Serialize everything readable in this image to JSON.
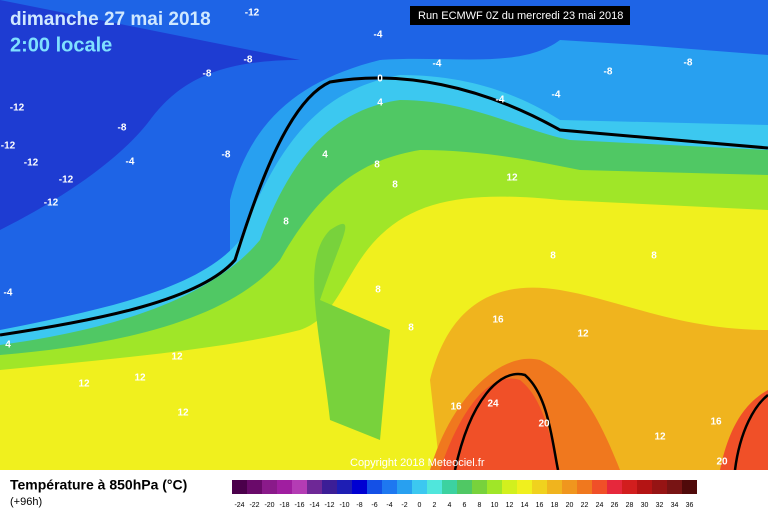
{
  "header": {
    "title": "dimanche 27 mai 2018",
    "subtitle": "2:00 locale",
    "run": "Run ECMWF 0Z du mercredi 23 mai 2018"
  },
  "copyright": "Copyright 2018 Meteociel.fr",
  "footer": {
    "label": "Température à 850hPa (°C)",
    "lead_time": "(+96h)"
  },
  "legend": {
    "levels": [
      -24,
      -22,
      -20,
      -18,
      -16,
      -14,
      -12,
      -10,
      -8,
      -6,
      -4,
      -2,
      0,
      2,
      4,
      6,
      8,
      10,
      12,
      14,
      16,
      18,
      20,
      22,
      24,
      26,
      28,
      30,
      32,
      34,
      36
    ],
    "colors": [
      "#4b004b",
      "#6a0a6a",
      "#8a1a8a",
      "#a01ea0",
      "#b43cb4",
      "#6e2896",
      "#3c1e96",
      "#1e1eb4",
      "#0000d2",
      "#1450e6",
      "#1e78f0",
      "#28a0f0",
      "#3cc8f0",
      "#50e6dc",
      "#3cd2a0",
      "#50c864",
      "#78d23c",
      "#a0e628",
      "#d2f01e",
      "#f0f01e",
      "#f0d21e",
      "#f0b41e",
      "#f0961e",
      "#f0781e",
      "#f05028",
      "#e6283c",
      "#d21e1e",
      "#b41414",
      "#961414",
      "#781414",
      "#500a0a"
    ]
  },
  "contour_labels": [
    "-12",
    "-4",
    "-8",
    "-8",
    "-4",
    "-8",
    "-8",
    "-4",
    "-4",
    "-12",
    "-8",
    "-12",
    "-12",
    "-4",
    "-8",
    "-12",
    "-12",
    "0",
    "4",
    "4",
    "8",
    "8",
    "12",
    "8",
    "8",
    "8",
    "8",
    "8",
    "16",
    "12",
    "12",
    "12",
    "12",
    "12",
    "16",
    "24",
    "20",
    "12",
    "16",
    "20",
    "-4",
    "4"
  ]
}
